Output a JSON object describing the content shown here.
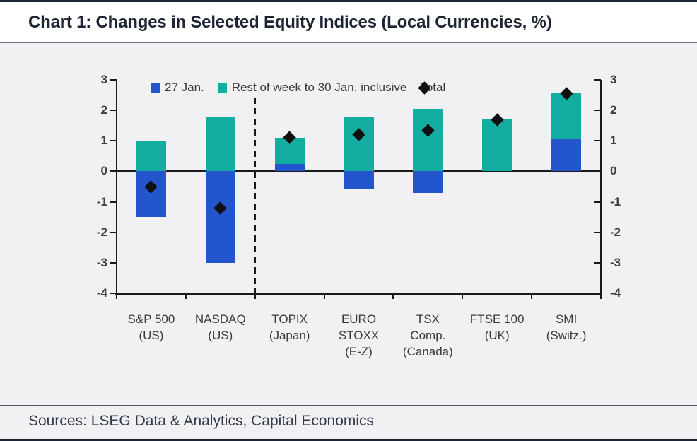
{
  "header": {
    "title": "Chart 1: Changes in Selected Equity Indices (Local Currencies, %)"
  },
  "footer": {
    "sources": "Sources: LSEG Data & Analytics, Capital Economics"
  },
  "colors": {
    "bar_blue": "#2355cc",
    "bar_teal": "#12ada0",
    "marker_black": "#101010",
    "page_accent_navy": "#1c2433"
  },
  "legend": {
    "items": [
      {
        "label": "27 Jan.",
        "marker": "square",
        "color": "#2355cc"
      },
      {
        "label": "Rest of week to 30 Jan. inclusive",
        "marker": "square",
        "color": "#12ada0"
      },
      {
        "label": "Total",
        "marker": "diamond",
        "color": "#101010"
      }
    ]
  },
  "chart_data": {
    "type": "bar",
    "stacked": true,
    "title": "Chart 1: Changes in Selected Equity Indices (Local Currencies, %)",
    "categories": [
      "S&P 500\n(US)",
      "NASDAQ\n(US)",
      "TOPIX\n(Japan)",
      "EURO\nSTOXX\n(E-Z)",
      "TSX\nComp.\n(Canada)",
      "FTSE 100\n(UK)",
      "SMI\n(Switz.)"
    ],
    "series": [
      {
        "key": "jan27",
        "name": "27 Jan.",
        "color": "#2355cc",
        "values": [
          -1.5,
          -3.0,
          0.25,
          -0.6,
          -0.7,
          0.0,
          1.05
        ]
      },
      {
        "key": "rest-of-week",
        "name": "Rest of week to 30 Jan. inclusive",
        "color": "#12ada0",
        "values": [
          1.0,
          1.8,
          0.85,
          1.8,
          2.05,
          1.7,
          1.5
        ]
      }
    ],
    "totals": {
      "name": "Total",
      "marker": "diamond",
      "color": "#101010",
      "values": [
        -0.5,
        -1.2,
        1.1,
        1.2,
        1.35,
        1.7,
        2.55
      ]
    },
    "ylim": [
      -4,
      3
    ],
    "yticks": [
      3,
      2,
      1,
      0,
      -1,
      -2,
      -3,
      -4
    ],
    "y_axis_sides": [
      "left",
      "right"
    ],
    "grid": false,
    "legend_position": "top",
    "separator": {
      "type": "dashed-vertical",
      "after_index": 1,
      "note": "separates US indices from others"
    }
  }
}
